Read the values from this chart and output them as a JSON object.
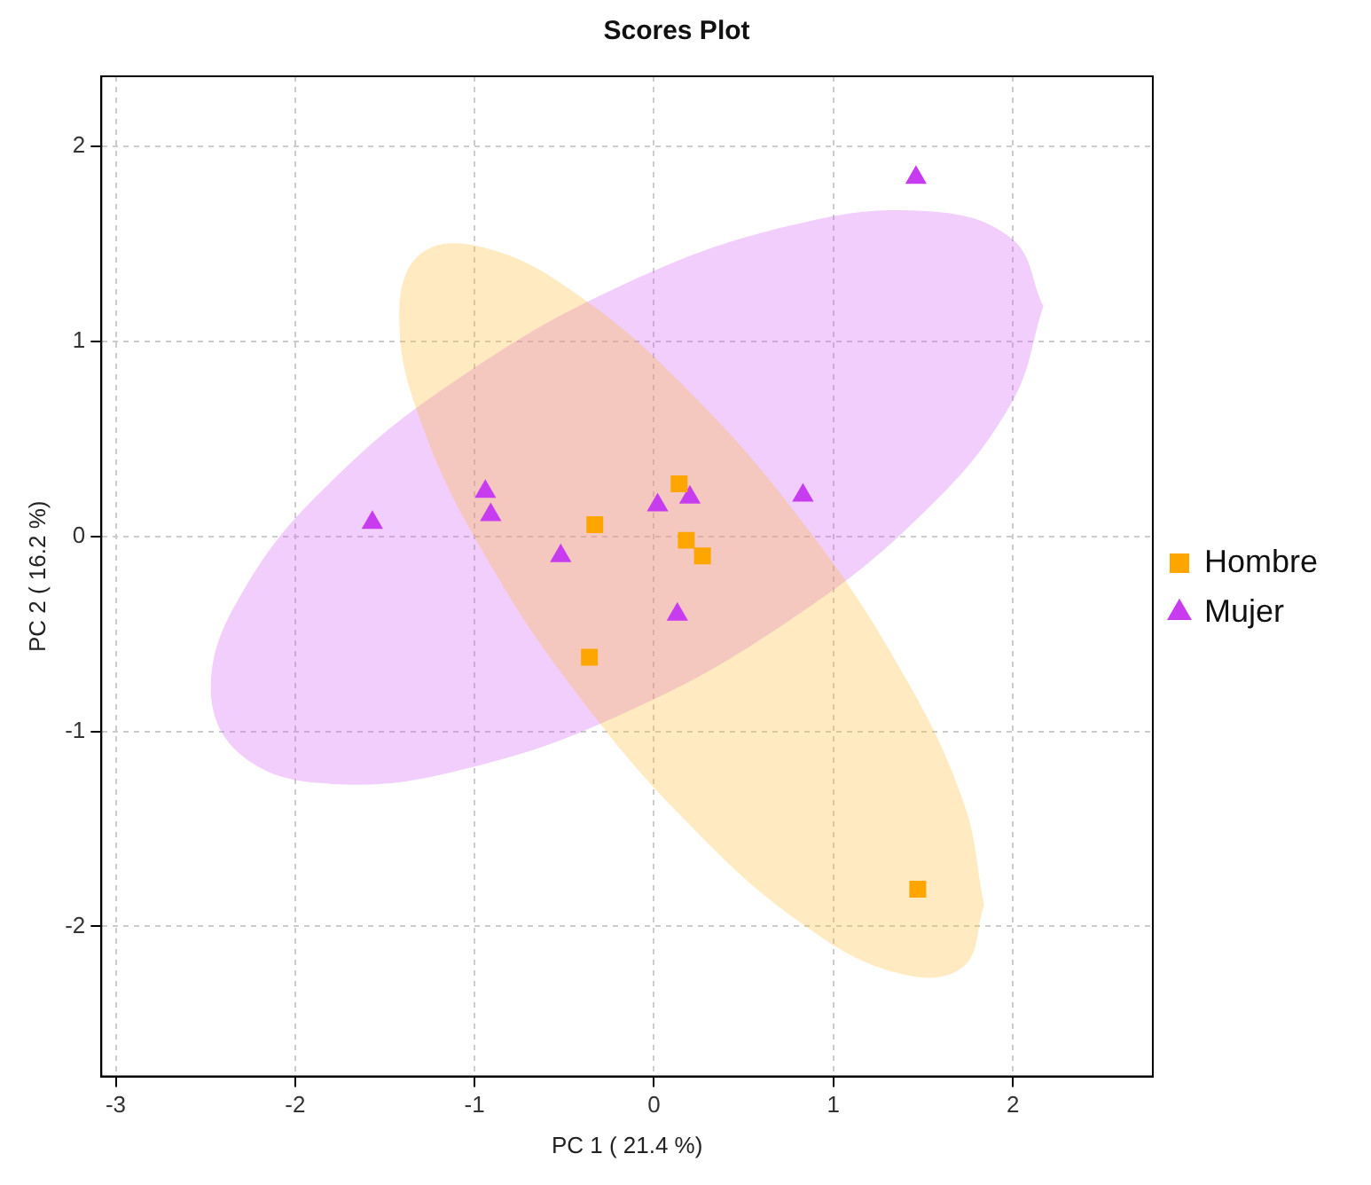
{
  "chart_data": {
    "type": "scatter",
    "title": "Scores Plot",
    "xlabel": "PC 1 ( 21.4 %)",
    "ylabel": "PC 2 ( 16.2 %)",
    "xlim": [
      -3.08,
      2.78
    ],
    "ylim": [
      -2.77,
      2.36
    ],
    "xticks": [
      -3,
      -2,
      -1,
      0,
      1,
      2
    ],
    "yticks": [
      -2,
      -1,
      0,
      1,
      2
    ],
    "grid": true,
    "legend": "right",
    "series": [
      {
        "type": "area",
        "color": "#ffbb33",
        "marker": "none",
        "x": [
          1.84,
          1.72,
          1.36,
          0.83,
          0.21,
          -0.41,
          -0.94,
          -1.3,
          -1.42,
          -1.3,
          -0.94,
          -0.41,
          0.21,
          0.83,
          1.36,
          1.72,
          1.84
        ],
        "values": [
          -1.89,
          -2.21,
          -2.24,
          -1.99,
          -1.49,
          -0.83,
          -0.1,
          0.59,
          1.13,
          1.45,
          1.48,
          1.23,
          0.73,
          0.07,
          -0.66,
          -1.35,
          -1.89
        ]
      },
      {
        "type": "area",
        "color": "#d25cf5",
        "marker": "none",
        "x": [
          2.17,
          1.99,
          1.49,
          0.74,
          -0.15,
          -1.04,
          -1.79,
          -2.29,
          -2.47,
          -2.29,
          -1.79,
          -1.04,
          -0.15,
          0.74,
          1.49,
          1.99,
          2.17
        ],
        "values": [
          1.18,
          0.68,
          0.11,
          -0.44,
          -0.9,
          -1.19,
          -1.27,
          -1.13,
          -0.78,
          -0.28,
          0.29,
          0.84,
          1.3,
          1.59,
          1.67,
          1.53,
          1.18
        ]
      },
      {
        "name": "Hombre",
        "color": "#ffa500",
        "marker": "square",
        "x": [
          -0.33,
          0.14,
          0.18,
          0.27,
          -0.36,
          1.47
        ],
        "values": [
          0.06,
          0.27,
          -0.02,
          -0.1,
          -0.62,
          -1.81
        ]
      },
      {
        "name": "Mujer",
        "color": "#c83cf0",
        "marker": "triangle",
        "x": [
          -1.57,
          -0.94,
          -0.91,
          -0.52,
          0.02,
          0.2,
          0.13,
          0.83,
          1.46
        ],
        "values": [
          0.07,
          0.23,
          0.11,
          -0.1,
          0.16,
          0.2,
          -0.4,
          0.21,
          1.84
        ]
      }
    ]
  }
}
